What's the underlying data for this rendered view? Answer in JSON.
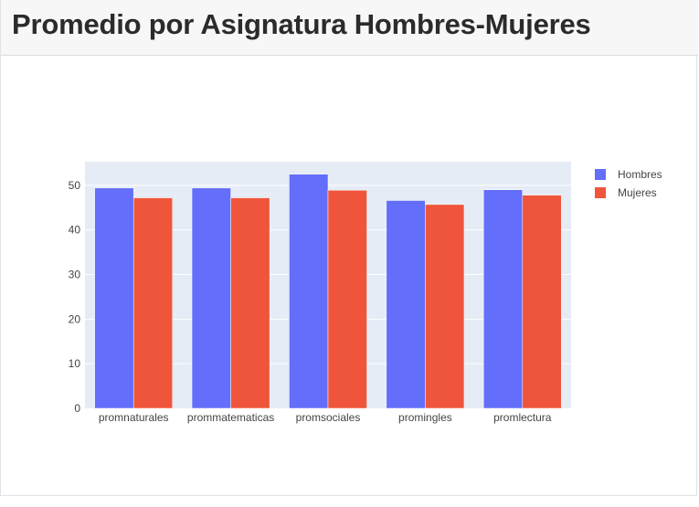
{
  "header": {
    "title": "Promedio por Asignatura Hombres-Mujeres"
  },
  "colors": {
    "plot_bg": "#e5ecf6",
    "grid": "#ffffff",
    "hombres": "#636efa",
    "mujeres": "#ef553b"
  },
  "chart_data": {
    "type": "bar",
    "categories": [
      "promnaturales",
      "prommatematicas",
      "promsociales",
      "promingles",
      "promlectura"
    ],
    "series": [
      {
        "name": "Hombres",
        "values": [
          49.4,
          49.4,
          52.5,
          46.6,
          49.0
        ]
      },
      {
        "name": "Mujeres",
        "values": [
          47.2,
          47.2,
          48.9,
          45.7,
          47.8
        ]
      }
    ],
    "yticks": [
      0,
      10,
      20,
      30,
      40,
      50
    ],
    "ylim": [
      0,
      55.3
    ],
    "grid": true,
    "legend_position": "top-right",
    "title": "",
    "xlabel": "",
    "ylabel": ""
  }
}
